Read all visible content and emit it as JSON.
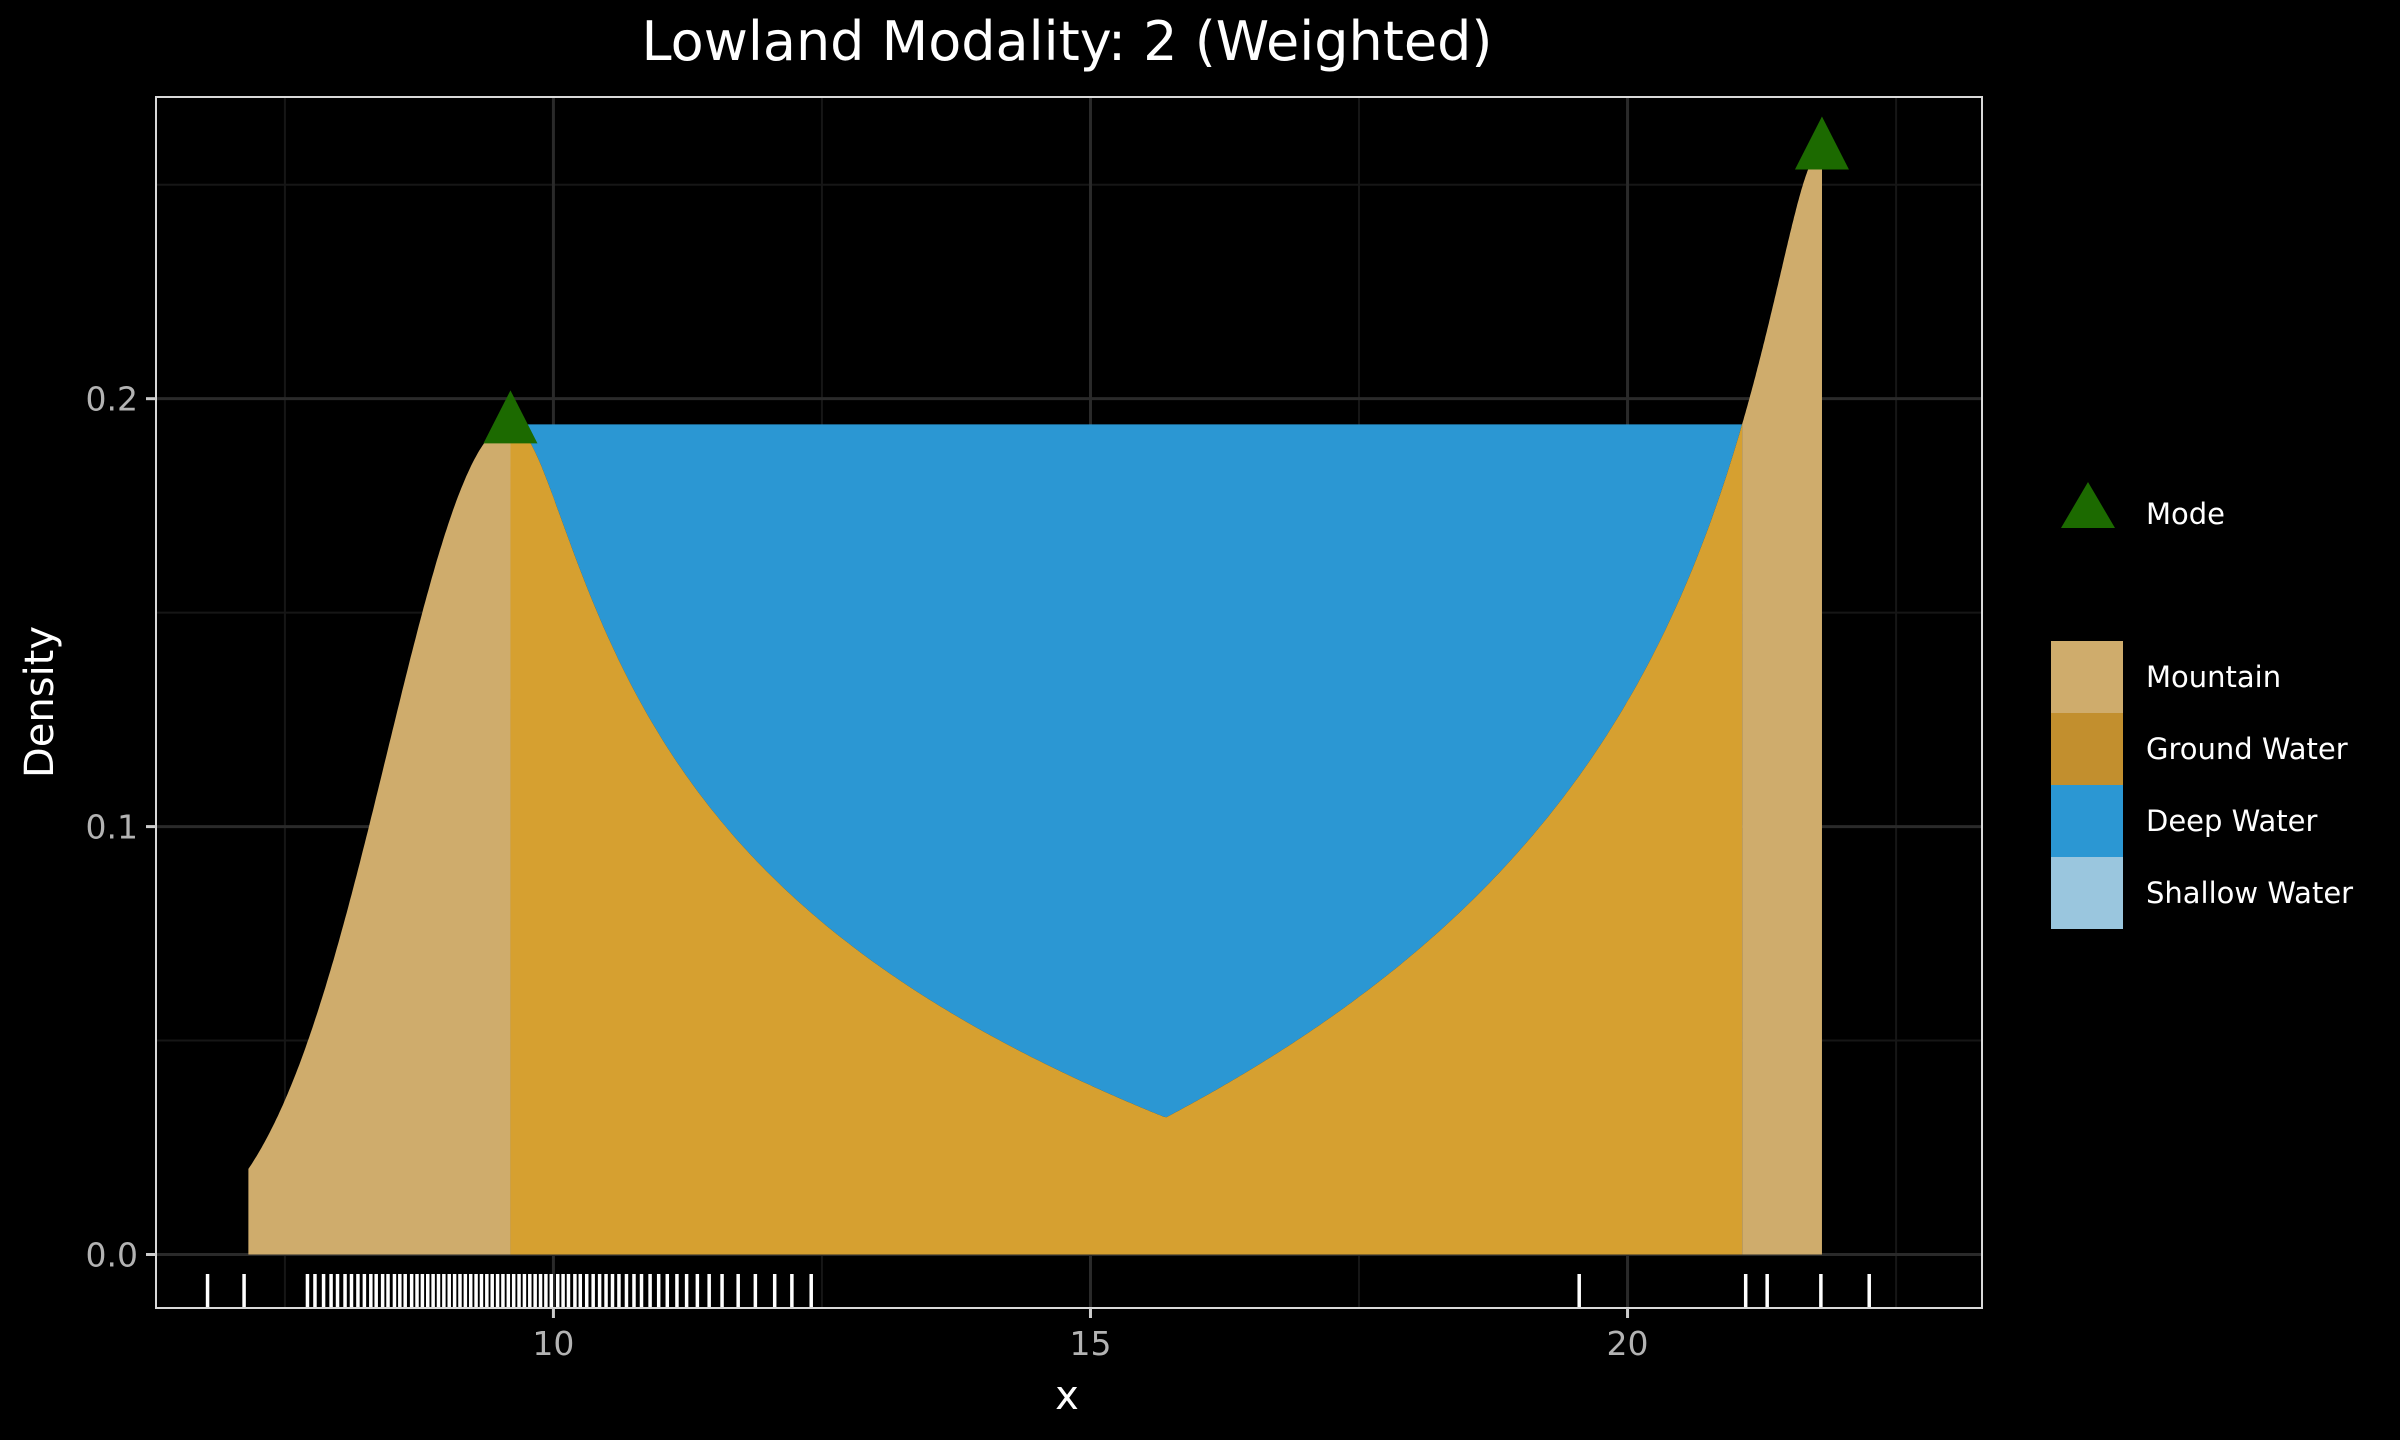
{
  "chart_data": {
    "type": "area",
    "title": "Lowland Modality: 2 (Weighted)",
    "xlabel": "x",
    "ylabel": "Density",
    "xlim": [
      6.3,
      23.3
    ],
    "ylim": [
      -0.0125,
      0.2705
    ],
    "x_ticks": [
      10,
      15,
      20
    ],
    "x_tick_labels": [
      "10",
      "15",
      "20"
    ],
    "x_minor_ticks": [
      7.5,
      12.5,
      17.5,
      22.5
    ],
    "y_ticks": [
      0.0,
      0.1,
      0.2
    ],
    "y_tick_labels": [
      "0.0",
      "0.1",
      "0.2"
    ],
    "y_minor_ticks": [
      0.05,
      0.15,
      0.25
    ],
    "grid": true,
    "legend_position": "right",
    "colors": {
      "background": "#000000",
      "panel_border": "#d9d9d9",
      "grid_major": "#2a2a2a",
      "grid_minor": "#161616",
      "mountain": "#cfac6c",
      "ground_water": "#d6a030",
      "deep_water": "#2b97d3",
      "shallow_water": "#9ac6de",
      "mode_marker": "#1c6a00",
      "rug": "#ffffff"
    },
    "density": {
      "x_start": 7.16,
      "x_end": 21.81,
      "peak1": {
        "x": 9.6,
        "y": 0.194,
        "sd": 0.82,
        "left_value": 0.02
      },
      "peak2": {
        "x": 21.81,
        "y": 0.258,
        "tail_scale": 0.55,
        "tail_power": 1.85,
        "tail_height": 0.032
      },
      "trough": {
        "x": 15.7,
        "y": 0.032
      },
      "water_level": 0.194
    },
    "regions": [
      {
        "name": "Mountain",
        "from": 7.16,
        "to": 9.6
      },
      {
        "name": "Ground Water",
        "from": 9.6,
        "to": 21.4
      },
      {
        "name": "Deep Water",
        "level": 0.194,
        "from": 9.6,
        "to": 21.4
      },
      {
        "name": "Mountain",
        "from": 21.4,
        "to": 21.81
      }
    ],
    "modes": [
      {
        "x": 9.6,
        "y": 0.194
      },
      {
        "x": 21.81,
        "y": 0.258
      }
    ],
    "rug": [
      6.78,
      7.12,
      7.71,
      7.78,
      7.86,
      7.93,
      7.99,
      8.06,
      8.12,
      8.18,
      8.24,
      8.3,
      8.35,
      8.41,
      8.46,
      8.52,
      8.57,
      8.62,
      8.68,
      8.73,
      8.78,
      8.83,
      8.88,
      8.93,
      8.98,
      9.03,
      9.08,
      9.13,
      9.18,
      9.23,
      9.28,
      9.33,
      9.38,
      9.43,
      9.48,
      9.53,
      9.58,
      9.63,
      9.68,
      9.73,
      9.78,
      9.83,
      9.88,
      9.93,
      9.98,
      10.04,
      10.09,
      10.14,
      10.2,
      10.25,
      10.31,
      10.37,
      10.43,
      10.49,
      10.55,
      10.61,
      10.68,
      10.75,
      10.82,
      10.9,
      10.98,
      11.06,
      11.15,
      11.24,
      11.34,
      11.45,
      11.57,
      11.72,
      11.88,
      12.06,
      12.22,
      12.4,
      19.55,
      21.1,
      21.3,
      21.8,
      22.25
    ],
    "legend": {
      "mode_label": "Mode",
      "items": [
        {
          "label": "Mountain",
          "color": "#cfac6c"
        },
        {
          "label": "Ground Water",
          "color": "#c28f2e"
        },
        {
          "label": "Deep Water",
          "color": "#2b97d3"
        },
        {
          "label": "Shallow Water",
          "color": "#9ac6de"
        }
      ]
    }
  }
}
